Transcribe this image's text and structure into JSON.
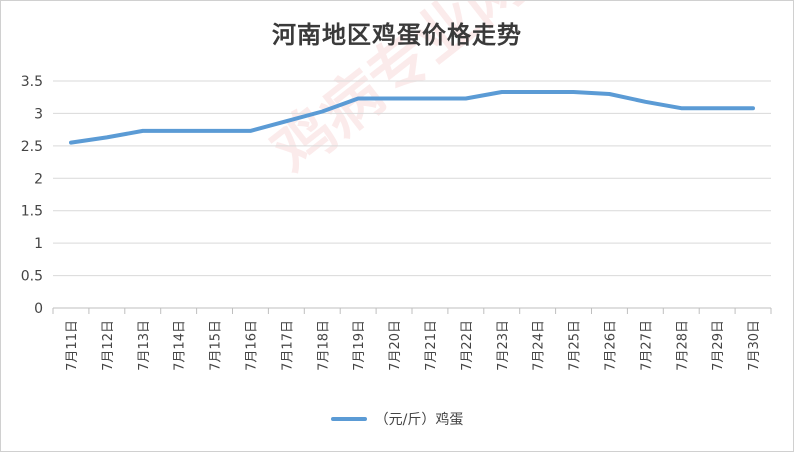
{
  "chart_data": {
    "type": "line",
    "title": "河南地区鸡蛋价格走势",
    "categories": [
      "7月11日",
      "7月12日",
      "7月13日",
      "7月14日",
      "7月15日",
      "7月16日",
      "7月17日",
      "7月18日",
      "7月19日",
      "7月20日",
      "7月21日",
      "7月22日",
      "7月23日",
      "7月24日",
      "7月25日",
      "7月26日",
      "7月27日",
      "7月28日",
      "7月29日",
      "7月30日"
    ],
    "series": [
      {
        "name": "（元/斤）鸡蛋",
        "color": "#5B9BD5",
        "values": [
          2.55,
          2.63,
          2.73,
          2.73,
          2.73,
          2.73,
          2.88,
          3.03,
          3.23,
          3.23,
          3.23,
          3.23,
          3.33,
          3.33,
          3.33,
          3.3,
          3.18,
          3.08,
          3.08,
          3.08
        ]
      }
    ],
    "ylim": [
      0,
      3.5
    ],
    "yticks": [
      0,
      0.5,
      1,
      1.5,
      2,
      2.5,
      3,
      3.5
    ],
    "ytick_labels": [
      "0",
      "0.5",
      "1",
      "1.5",
      "2",
      "2.5",
      "3",
      "3.5"
    ],
    "grid": true,
    "legend_position": "bottom"
  },
  "watermark": "鸡病专业网"
}
